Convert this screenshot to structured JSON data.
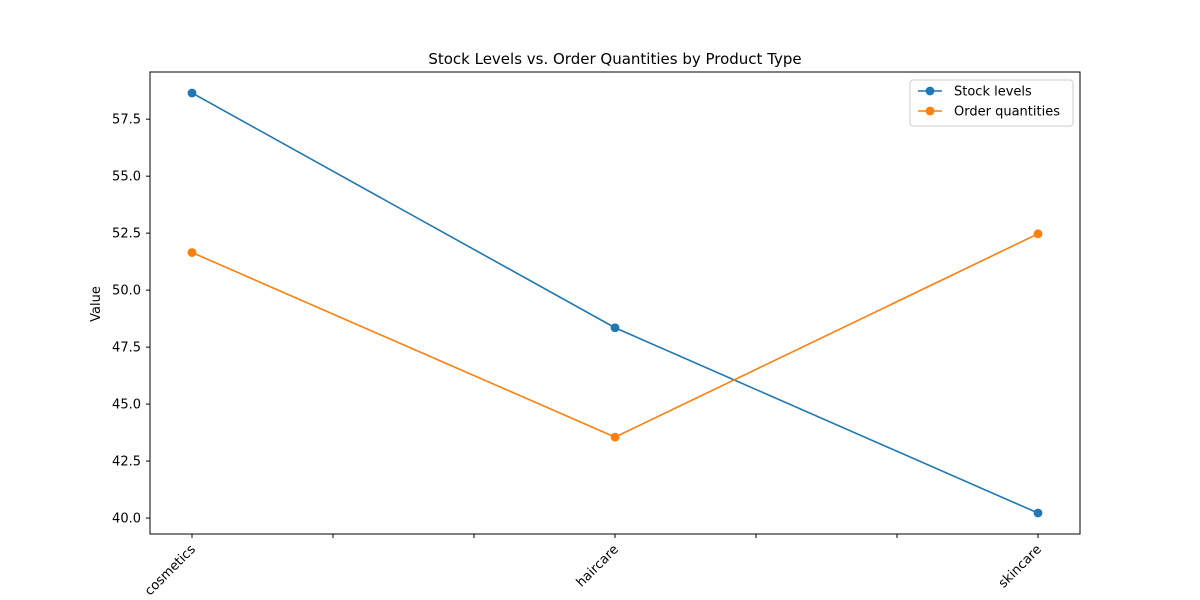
{
  "chart_data": {
    "type": "line",
    "title": "Stock Levels vs. Order Quantities by Product Type",
    "xlabel": "",
    "ylabel": "Value",
    "categories": [
      "cosmetics",
      "haircare",
      "skincare"
    ],
    "series": [
      {
        "name": "Stock levels",
        "color": "#1f77b4",
        "values": [
          58.65,
          48.35,
          40.22
        ]
      },
      {
        "name": "Order quantities",
        "color": "#ff7f0e",
        "values": [
          51.65,
          43.55,
          52.47
        ]
      }
    ],
    "ylim": [
      39.3,
      59.57
    ],
    "yticks": [
      40.0,
      42.5,
      45.0,
      47.5,
      50.0,
      52.5,
      55.0,
      57.5
    ],
    "ytick_labels": [
      "40.0",
      "42.5",
      "45.0",
      "47.5",
      "50.0",
      "52.5",
      "55.0",
      "57.5"
    ],
    "minor_x_ticks": 7,
    "grid": false,
    "legend_position": "upper right",
    "markers": "circle"
  }
}
